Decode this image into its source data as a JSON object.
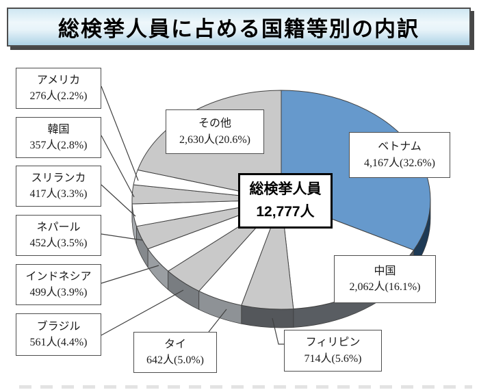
{
  "title": "総検挙人員に占める国籍等別の内訳",
  "center_label": {
    "line1": "総検挙人員",
    "line2": "12,777人"
  },
  "chart_data": {
    "type": "pie",
    "style": "3d-pie",
    "title": "総検挙人員に占める国籍等別の内訳",
    "total_label": "総検挙人員",
    "total_value": 12777,
    "total_display": "12,777人",
    "unit": "人",
    "start_angle_deg": 0,
    "direction": "clockwise",
    "slices": [
      {
        "label": "ベトナム",
        "value": 4167,
        "pct": 32.6,
        "display": "4,167人(32.6%)",
        "color": "#6699CC",
        "side": "#1E3A55"
      },
      {
        "label": "中国",
        "value": 2062,
        "pct": 16.1,
        "display": "2,062人(16.1%)",
        "color": "#FFFFFF",
        "side": "#595D62"
      },
      {
        "label": "フィリピン",
        "value": 714,
        "pct": 5.6,
        "display": "714人(5.6%)",
        "color": "#C9C9C9",
        "side": "#54575B"
      },
      {
        "label": "タイ",
        "value": 642,
        "pct": 5.0,
        "display": "642人(5.0%)",
        "color": "#FFFFFF",
        "side": "#8E9296"
      },
      {
        "label": "ブラジル",
        "value": 561,
        "pct": 4.4,
        "display": "561人(4.4%)",
        "color": "#C9C9C9",
        "side": "#797D81"
      },
      {
        "label": "インドネシア",
        "value": 499,
        "pct": 3.9,
        "display": "499人(3.9%)",
        "color": "#FFFFFF",
        "side": "#9A9EA2"
      },
      {
        "label": "ネパール",
        "value": 452,
        "pct": 3.5,
        "display": "452人(3.5%)",
        "color": "#C9C9C9",
        "side": "#85898D"
      },
      {
        "label": "スリランカ",
        "value": 417,
        "pct": 3.3,
        "display": "417人(3.3%)",
        "color": "#FFFFFF",
        "side": "#A6AAAE"
      },
      {
        "label": "韓国",
        "value": 357,
        "pct": 2.8,
        "display": "357人(2.8%)",
        "color": "#C9C9C9",
        "side": "#8F9397"
      },
      {
        "label": "アメリカ",
        "value": 276,
        "pct": 2.2,
        "display": "276人(2.2%)",
        "color": "#FFFFFF",
        "side": "#9A9EA2"
      },
      {
        "label": "その他",
        "value": 2630,
        "pct": 20.6,
        "display": "2,630人(20.6%)",
        "color": "#C9C9C9",
        "side": "#85898D"
      }
    ]
  },
  "colors": {
    "accent_blue": "#6699CC",
    "slice_gray": "#C9C9C9",
    "outline": "#3F3F3F",
    "title_gradient_top": "#CFE7F2",
    "title_gradient_bottom": "#AED3E6"
  }
}
